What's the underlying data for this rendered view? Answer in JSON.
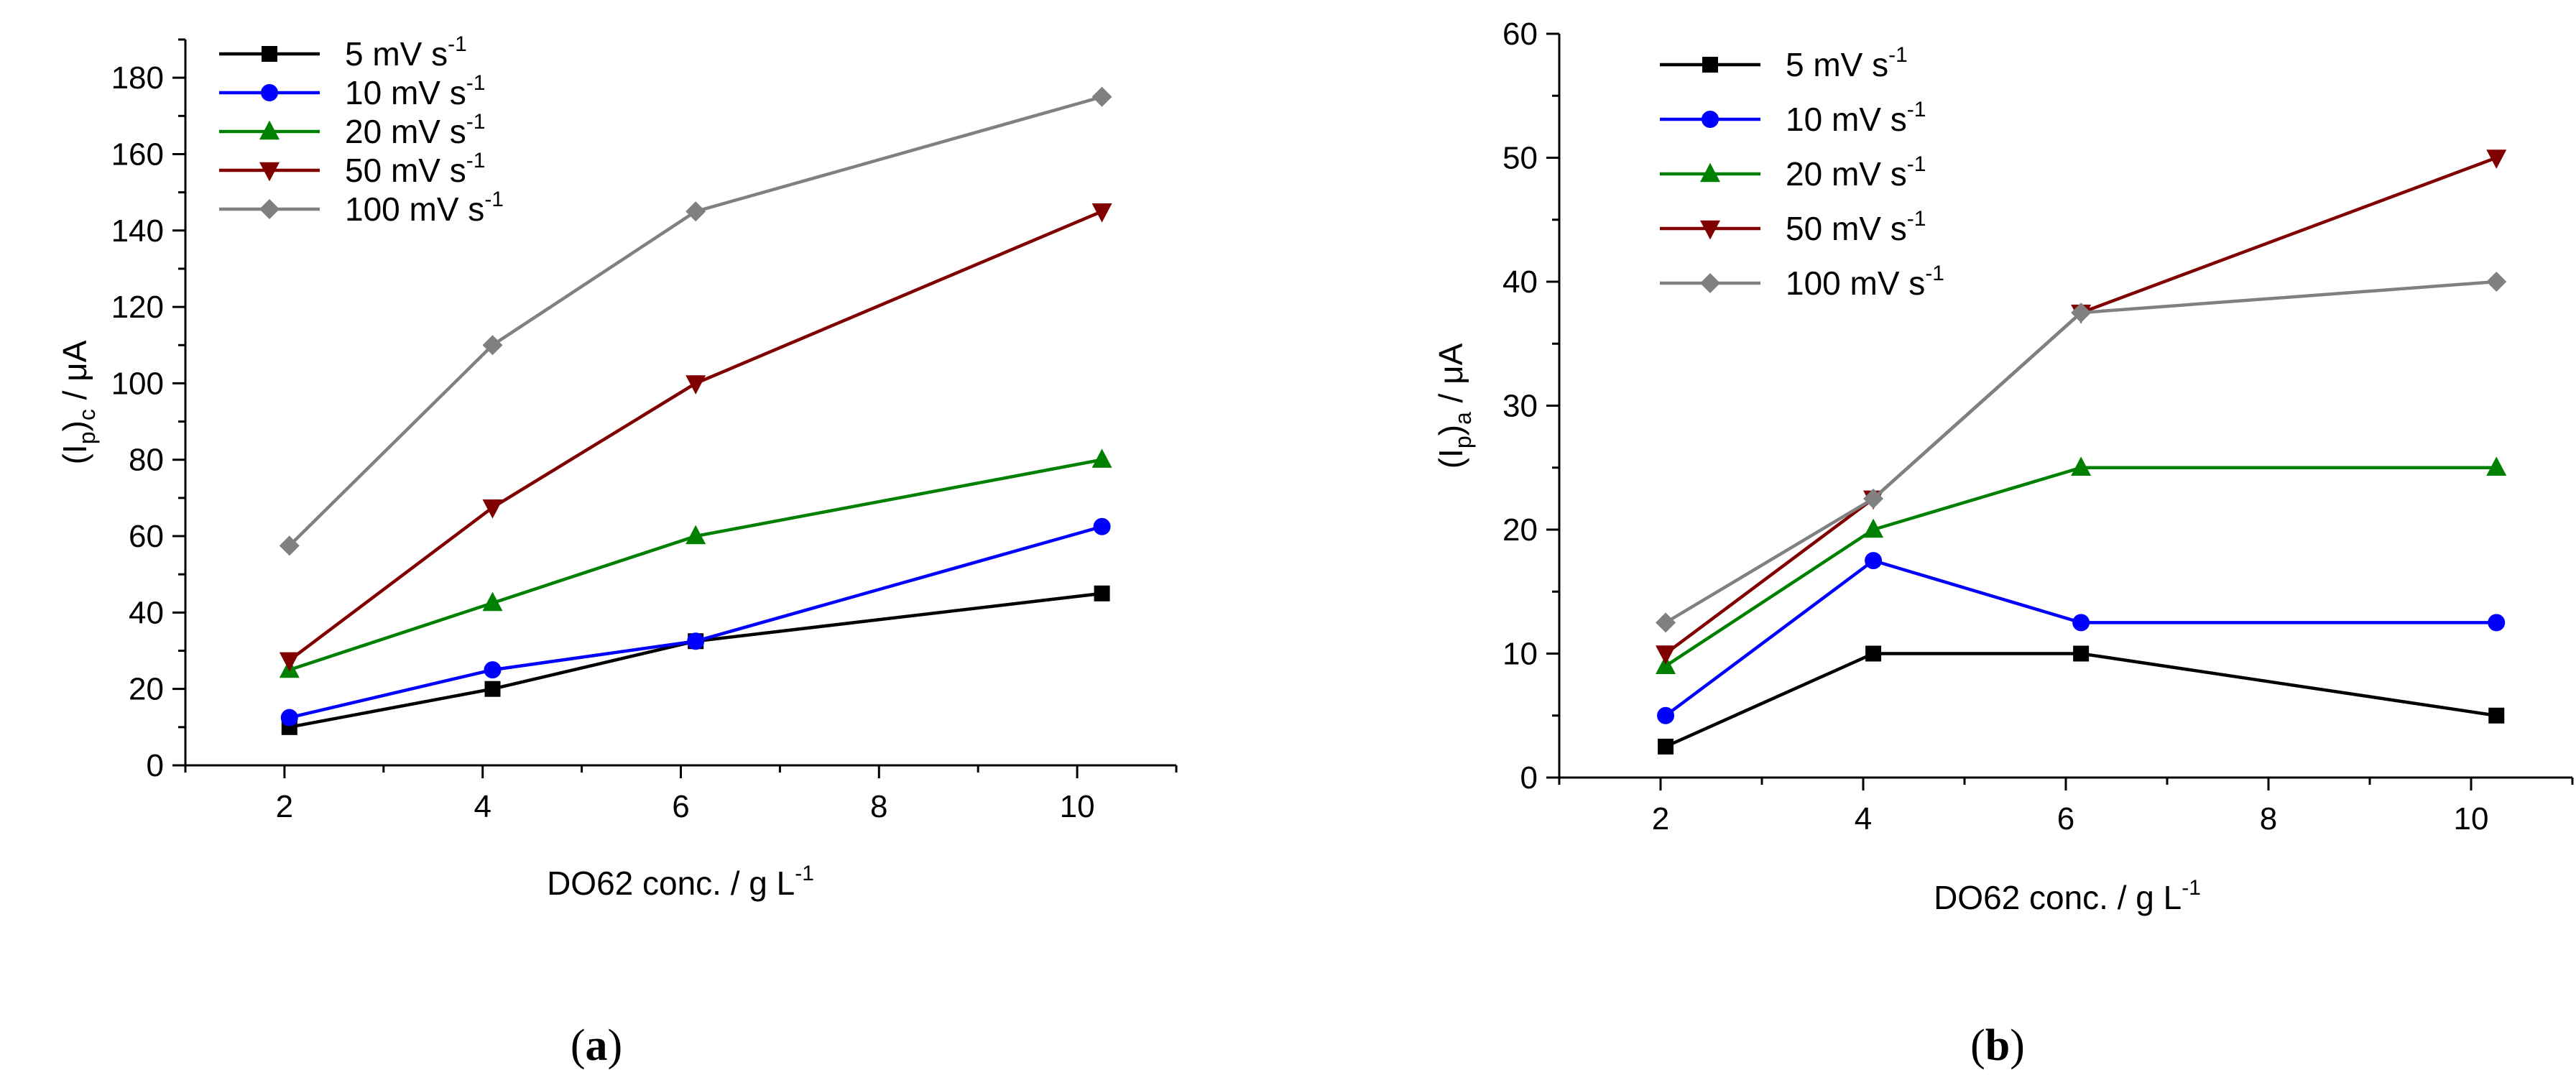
{
  "chart_data": [
    {
      "type": "line",
      "panel_label": {
        "open": "(",
        "letter": "a",
        "close": ")"
      },
      "xlabel": {
        "text": "DO62 conc. / g L",
        "sup": "-1"
      },
      "ylabel": {
        "main": "(I",
        "sub1": "p",
        "mid": ")",
        "sub2": "c",
        "unit": " / μA"
      },
      "xlim": [
        1,
        11
      ],
      "ylim": [
        0,
        190
      ],
      "xticks": [
        2,
        4,
        6,
        8,
        10
      ],
      "yticks": [
        0,
        20,
        40,
        60,
        80,
        100,
        120,
        140,
        160,
        180
      ],
      "x": [
        2.05,
        4.1,
        6.15,
        10.25
      ],
      "legend_position": "top-left",
      "series": [
        {
          "name": "5 mV s",
          "sup": "-1",
          "color": "#000000",
          "marker": "square",
          "values": [
            10,
            20,
            32.5,
            45
          ]
        },
        {
          "name": "10  mV s",
          "sup": "-1",
          "color": "#0000ff",
          "marker": "circle",
          "values": [
            12.5,
            25,
            32.5,
            62.5
          ]
        },
        {
          "name": "20  mV s",
          "sup": "-1",
          "color": "#008000",
          "marker": "triangle-up",
          "values": [
            25,
            42.5,
            60,
            80
          ]
        },
        {
          "name": "50  mV s",
          "sup": "-1",
          "color": "#800000",
          "marker": "triangle-down",
          "values": [
            27.5,
            67.5,
            100,
            145
          ]
        },
        {
          "name": "100  mV s",
          "sup": "-1",
          "color": "#808080",
          "marker": "diamond",
          "values": [
            57.5,
            110,
            145,
            175
          ]
        }
      ]
    },
    {
      "type": "line",
      "panel_label": {
        "open": "(",
        "letter": "b",
        "close": ")"
      },
      "xlabel": {
        "text": "DO62 conc. / g L",
        "sup": "-1"
      },
      "ylabel": {
        "main": "(I",
        "sub1": "p",
        "mid": ")",
        "sub2": "a",
        "unit": " / μA"
      },
      "xlim": [
        1,
        11
      ],
      "ylim": [
        0,
        60
      ],
      "xticks": [
        2,
        4,
        6,
        8,
        10
      ],
      "yticks": [
        0,
        10,
        20,
        30,
        40,
        50,
        60
      ],
      "x": [
        2.05,
        4.1,
        6.15,
        10.25
      ],
      "legend_position": "top-left",
      "series": [
        {
          "name": "5 mV s",
          "sup": "-1",
          "color": "#000000",
          "marker": "square",
          "values": [
            2.5,
            10,
            10,
            5
          ]
        },
        {
          "name": "10 mV s",
          "sup": "-1",
          "color": "#0000ff",
          "marker": "circle",
          "values": [
            5,
            17.5,
            12.5,
            12.5
          ]
        },
        {
          "name": "20 mV s",
          "sup": "-1",
          "color": "#008000",
          "marker": "triangle-up",
          "values": [
            9,
            20,
            25,
            25
          ]
        },
        {
          "name": "50 mV s",
          "sup": "-1",
          "color": "#800000",
          "marker": "triangle-down",
          "values": [
            10,
            22.5,
            37.5,
            50
          ]
        },
        {
          "name": "100 mV s",
          "sup": "-1",
          "color": "#808080",
          "marker": "diamond",
          "values": [
            12.5,
            22.5,
            37.5,
            40
          ]
        }
      ]
    }
  ]
}
